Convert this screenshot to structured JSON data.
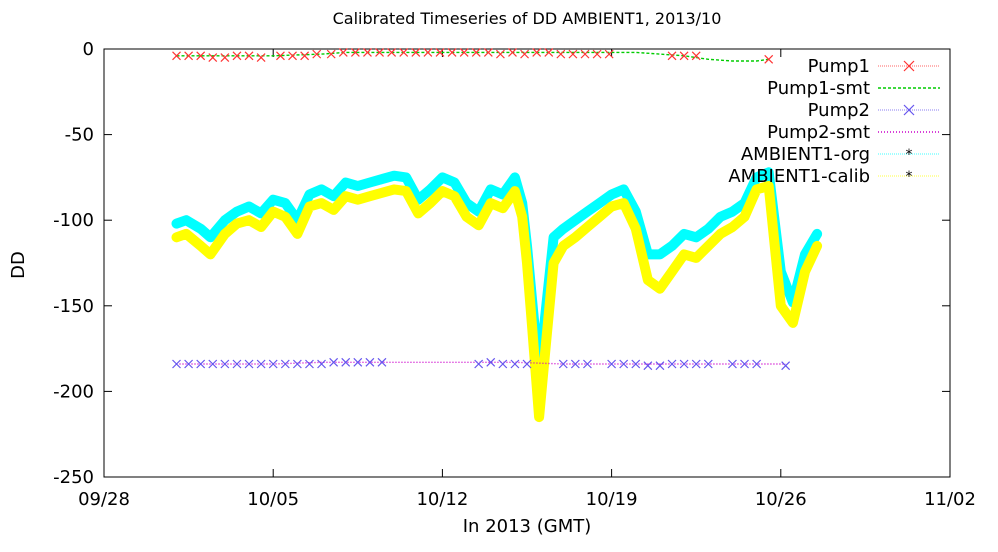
{
  "chart_data": {
    "type": "line",
    "title": "Calibrated Timeseries of DD AMBIENT1, 2013/10",
    "xlabel": "In 2013 (GMT)",
    "ylabel": "DD",
    "xlim": [
      "2013-09-28",
      "2013-11-02"
    ],
    "ylim": [
      -250,
      0
    ],
    "x_ticks": [
      "09/28",
      "10/05",
      "10/12",
      "10/19",
      "10/26",
      "11/02"
    ],
    "y_ticks": [
      "0",
      "-50",
      "-100",
      "-150",
      "-200",
      "-250"
    ],
    "grid": false,
    "legend": "top-right",
    "series": [
      {
        "name": "Pump1",
        "color": "#ff3333",
        "style": "points",
        "marker": "x",
        "x": [
          "2013-10-01",
          "2013-10-01.5",
          "2013-10-02",
          "2013-10-02.5",
          "2013-10-03",
          "2013-10-03.5",
          "2013-10-04",
          "2013-10-04.5",
          "2013-10-05.3",
          "2013-10-05.8",
          "2013-10-06.3",
          "2013-10-06.8",
          "2013-10-07.4",
          "2013-10-07.9",
          "2013-10-08.4",
          "2013-10-08.9",
          "2013-10-09.4",
          "2013-10-09.9",
          "2013-10-10.4",
          "2013-10-10.9",
          "2013-10-11.4",
          "2013-10-11.9",
          "2013-10-12.4",
          "2013-10-12.9",
          "2013-10-13.4",
          "2013-10-13.9",
          "2013-10-14.4",
          "2013-10-14.9",
          "2013-10-15.4",
          "2013-10-15.9",
          "2013-10-16.4",
          "2013-10-16.9",
          "2013-10-17.4",
          "2013-10-17.9",
          "2013-10-18.4",
          "2013-10-18.9",
          "2013-10-21.5",
          "2013-10-22",
          "2013-10-22.5",
          "2013-10-25.5"
        ],
        "y": [
          -4,
          -4,
          -4,
          -5,
          -5,
          -4,
          -4,
          -5,
          -4,
          -4,
          -4,
          -3,
          -3,
          -2,
          -2,
          -2,
          -2,
          -2,
          -2,
          -2,
          -2,
          -2,
          -2,
          -2,
          -2,
          -2,
          -3,
          -2,
          -3,
          -2,
          -2,
          -3,
          -3,
          -3,
          -3,
          -3,
          -4,
          -4,
          -4,
          -6
        ]
      },
      {
        "name": "Pump1-smt",
        "color": "#00cc00",
        "style": "dashed",
        "x": [
          "2013-10-01",
          "2013-10-03",
          "2013-10-05",
          "2013-10-07",
          "2013-10-08",
          "2013-10-10",
          "2013-10-12",
          "2013-10-14",
          "2013-10-16",
          "2013-10-18",
          "2013-10-19",
          "2013-10-20",
          "2013-10-21",
          "2013-10-22",
          "2013-10-23",
          "2013-10-24",
          "2013-10-25",
          "2013-10-25.5"
        ],
        "y": [
          -4,
          -4,
          -4,
          -3,
          -2,
          -2,
          -2,
          -2,
          -2,
          -2,
          -2,
          -2,
          -3,
          -4,
          -6,
          -7,
          -7,
          -6
        ]
      },
      {
        "name": "Pump2",
        "color": "#6655ee",
        "style": "points",
        "marker": "x",
        "x": [
          "2013-10-01",
          "2013-10-01.5",
          "2013-10-02",
          "2013-10-02.5",
          "2013-10-03",
          "2013-10-03.5",
          "2013-10-04",
          "2013-10-04.5",
          "2013-10-05",
          "2013-10-05.5",
          "2013-10-06",
          "2013-10-06.5",
          "2013-10-07",
          "2013-10-07.5",
          "2013-10-08",
          "2013-10-08.5",
          "2013-10-09",
          "2013-10-09.5",
          "2013-10-13.5",
          "2013-10-14",
          "2013-10-14.5",
          "2013-10-15",
          "2013-10-15.5",
          "2013-10-17",
          "2013-10-17.5",
          "2013-10-18",
          "2013-10-19",
          "2013-10-19.5",
          "2013-10-20",
          "2013-10-20.5",
          "2013-10-21",
          "2013-10-21.5",
          "2013-10-22",
          "2013-10-22.5",
          "2013-10-23",
          "2013-10-24",
          "2013-10-24.5",
          "2013-10-25",
          "2013-10-26.2"
        ],
        "y": [
          -184,
          -184,
          -184,
          -184,
          -184,
          -184,
          -184,
          -184,
          -184,
          -184,
          -184,
          -184,
          -184,
          -183,
          -183,
          -183,
          -183,
          -183,
          -184,
          -183,
          -184,
          -184,
          -184,
          -184,
          -184,
          -184,
          -184,
          -184,
          -184,
          -185,
          -185,
          -184,
          -184,
          -184,
          -184,
          -184,
          -184,
          -184,
          -185
        ]
      },
      {
        "name": "Pump2-smt",
        "color": "#cc00cc",
        "style": "dotted",
        "x": [
          "2013-10-01",
          "2013-10-03",
          "2013-10-05",
          "2013-10-07",
          "2013-10-09",
          "2013-10-11",
          "2013-10-13",
          "2013-10-15",
          "2013-10-17",
          "2013-10-19",
          "2013-10-21",
          "2013-10-23",
          "2013-10-25",
          "2013-10-26.2"
        ],
        "y": [
          -184,
          -184,
          -184,
          -183,
          -183,
          -183,
          -183,
          -183,
          -184,
          -184,
          -184,
          -184,
          -184,
          -184
        ]
      },
      {
        "name": "AMBIENT1-org",
        "color": "#00ffff",
        "style": "points",
        "marker": "*",
        "x": [
          "2013-10-01",
          "2013-10-01.4",
          "2013-10-02",
          "2013-10-02.4",
          "2013-10-03",
          "2013-10-03.5",
          "2013-10-04",
          "2013-10-04.5",
          "2013-10-05",
          "2013-10-05.5",
          "2013-10-06",
          "2013-10-06.5",
          "2013-10-07",
          "2013-10-07.5",
          "2013-10-08",
          "2013-10-08.5",
          "2013-10-09",
          "2013-10-09.5",
          "2013-10-10",
          "2013-10-10.5",
          "2013-10-11",
          "2013-10-11.5",
          "2013-10-12",
          "2013-10-12.5",
          "2013-10-13",
          "2013-10-13.5",
          "2013-10-14",
          "2013-10-14.5",
          "2013-10-15",
          "2013-10-15.3",
          "2013-10-15.5",
          "2013-10-15.7",
          "2013-10-16",
          "2013-10-16.3",
          "2013-10-16.6",
          "2013-10-17",
          "2013-10-17.5",
          "2013-10-18",
          "2013-10-18.5",
          "2013-10-19",
          "2013-10-19.5",
          "2013-10-20",
          "2013-10-20.5",
          "2013-10-21",
          "2013-10-21.5",
          "2013-10-22",
          "2013-10-22.5",
          "2013-10-23",
          "2013-10-23.5",
          "2013-10-24",
          "2013-10-24.5",
          "2013-10-25",
          "2013-10-25.5",
          "2013-10-26",
          "2013-10-26.5",
          "2013-10-27",
          "2013-10-27.5"
        ],
        "y": [
          -102,
          -100,
          -105,
          -110,
          -100,
          -95,
          -92,
          -96,
          -88,
          -90,
          -100,
          -85,
          -82,
          -86,
          -78,
          -80,
          -78,
          -76,
          -74,
          -75,
          -88,
          -82,
          -75,
          -78,
          -90,
          -95,
          -82,
          -85,
          -75,
          -90,
          -115,
          -145,
          -190,
          -150,
          -110,
          -105,
          -100,
          -95,
          -90,
          -85,
          -82,
          -95,
          -120,
          -120,
          -115,
          -108,
          -110,
          -105,
          -98,
          -95,
          -90,
          -75,
          -72,
          -130,
          -148,
          -120,
          -108
        ]
      },
      {
        "name": "AMBIENT1-calib",
        "color": "#ffff00",
        "style": "points",
        "marker": "*",
        "x": [
          "2013-10-01",
          "2013-10-01.4",
          "2013-10-02",
          "2013-10-02.4",
          "2013-10-03",
          "2013-10-03.5",
          "2013-10-04",
          "2013-10-04.5",
          "2013-10-05",
          "2013-10-05.5",
          "2013-10-06",
          "2013-10-06.5",
          "2013-10-07",
          "2013-10-07.5",
          "2013-10-08",
          "2013-10-08.5",
          "2013-10-09",
          "2013-10-09.5",
          "2013-10-10",
          "2013-10-10.5",
          "2013-10-11",
          "2013-10-11.5",
          "2013-10-12",
          "2013-10-12.5",
          "2013-10-13",
          "2013-10-13.5",
          "2013-10-14",
          "2013-10-14.5",
          "2013-10-15",
          "2013-10-15.3",
          "2013-10-15.5",
          "2013-10-15.7",
          "2013-10-16",
          "2013-10-16.3",
          "2013-10-16.6",
          "2013-10-17",
          "2013-10-17.5",
          "2013-10-18",
          "2013-10-18.5",
          "2013-10-19",
          "2013-10-19.5",
          "2013-10-20",
          "2013-10-20.5",
          "2013-10-21",
          "2013-10-21.5",
          "2013-10-22",
          "2013-10-22.5",
          "2013-10-23",
          "2013-10-23.5",
          "2013-10-24",
          "2013-10-24.5",
          "2013-10-25",
          "2013-10-25.5",
          "2013-10-26",
          "2013-10-26.5",
          "2013-10-27",
          "2013-10-27.5"
        ],
        "y": [
          -110,
          -108,
          -115,
          -120,
          -108,
          -102,
          -100,
          -104,
          -95,
          -98,
          -108,
          -92,
          -90,
          -94,
          -86,
          -88,
          -86,
          -84,
          -82,
          -83,
          -96,
          -90,
          -83,
          -86,
          -98,
          -103,
          -90,
          -93,
          -83,
          -98,
          -125,
          -160,
          -215,
          -170,
          -125,
          -115,
          -110,
          -104,
          -98,
          -92,
          -90,
          -105,
          -135,
          -140,
          -130,
          -120,
          -122,
          -115,
          -108,
          -104,
          -98,
          -82,
          -80,
          -150,
          -160,
          -130,
          -115
        ]
      }
    ]
  }
}
